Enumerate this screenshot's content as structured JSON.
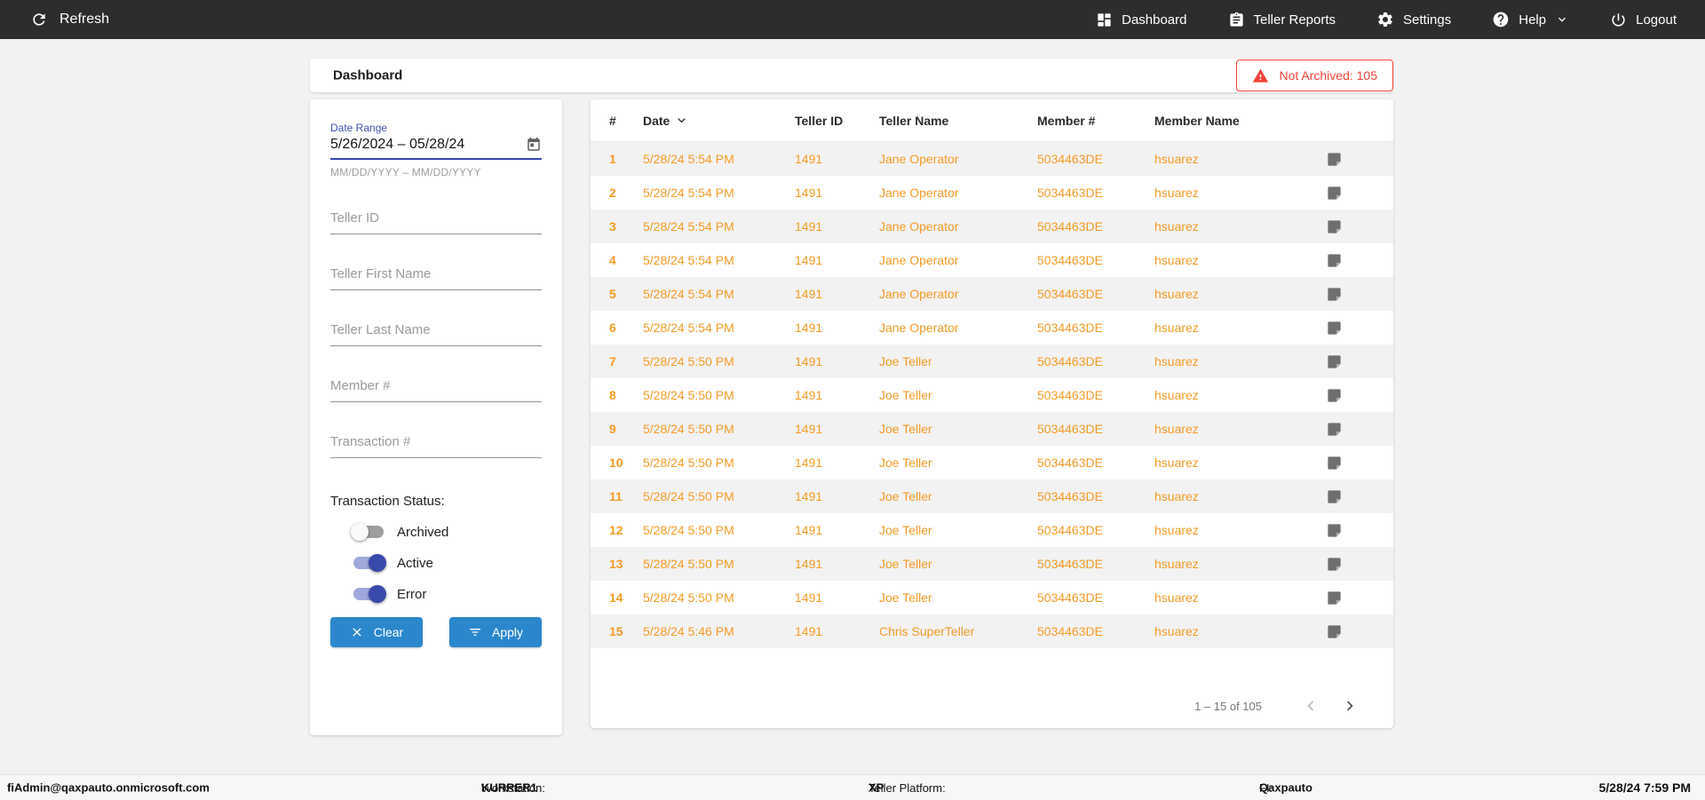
{
  "colors": {
    "nav_bg": "#2d2d2d",
    "accent_blue": "#2b87cc",
    "indigo_accent": "#3f51b5",
    "row_orange": "#f59b25",
    "alert_red": "#f44336"
  },
  "nav": {
    "refresh_label": "Refresh",
    "items": [
      {
        "label": "Dashboard",
        "icon": "dashboard-icon"
      },
      {
        "label": "Teller Reports",
        "icon": "teller-reports-icon"
      },
      {
        "label": "Settings",
        "icon": "settings-icon"
      },
      {
        "label": "Help",
        "icon": "help-icon",
        "has_dropdown": true
      },
      {
        "label": "Logout",
        "icon": "logout-icon"
      }
    ]
  },
  "header": {
    "title": "Dashboard",
    "alert_badge": "Not Archived: 105"
  },
  "filters": {
    "date_range": {
      "label": "Date Range",
      "value": "5/26/2024 – 05/28/24",
      "helper": "MM/DD/YYYY – MM/DD/YYYY"
    },
    "fields": [
      {
        "placeholder": "Teller ID"
      },
      {
        "placeholder": "Teller First Name"
      },
      {
        "placeholder": "Teller Last Name"
      },
      {
        "placeholder": "Member #"
      },
      {
        "placeholder": "Transaction #"
      }
    ],
    "status": {
      "label": "Transaction Status:",
      "toggles": [
        {
          "label": "Archived",
          "on": false
        },
        {
          "label": "Active",
          "on": true
        },
        {
          "label": "Error",
          "on": true
        }
      ]
    },
    "clear_label": "Clear",
    "apply_label": "Apply"
  },
  "table": {
    "columns": [
      "#",
      "Date",
      "Teller ID",
      "Teller Name",
      "Member #",
      "Member Name"
    ],
    "sorted_column": "Date",
    "sort_direction": "descending",
    "rows": [
      {
        "n": "1",
        "date": "5/28/24 5:54 PM",
        "teller_id": "1491",
        "teller_name": "Jane Operator",
        "member_num": "5034463DE",
        "member_name": "hsuarez"
      },
      {
        "n": "2",
        "date": "5/28/24 5:54 PM",
        "teller_id": "1491",
        "teller_name": "Jane Operator",
        "member_num": "5034463DE",
        "member_name": "hsuarez"
      },
      {
        "n": "3",
        "date": "5/28/24 5:54 PM",
        "teller_id": "1491",
        "teller_name": "Jane Operator",
        "member_num": "5034463DE",
        "member_name": "hsuarez"
      },
      {
        "n": "4",
        "date": "5/28/24 5:54 PM",
        "teller_id": "1491",
        "teller_name": "Jane Operator",
        "member_num": "5034463DE",
        "member_name": "hsuarez"
      },
      {
        "n": "5",
        "date": "5/28/24 5:54 PM",
        "teller_id": "1491",
        "teller_name": "Jane Operator",
        "member_num": "5034463DE",
        "member_name": "hsuarez"
      },
      {
        "n": "6",
        "date": "5/28/24 5:54 PM",
        "teller_id": "1491",
        "teller_name": "Jane Operator",
        "member_num": "5034463DE",
        "member_name": "hsuarez"
      },
      {
        "n": "7",
        "date": "5/28/24 5:50 PM",
        "teller_id": "1491",
        "teller_name": "Joe Teller",
        "member_num": "5034463DE",
        "member_name": "hsuarez"
      },
      {
        "n": "8",
        "date": "5/28/24 5:50 PM",
        "teller_id": "1491",
        "teller_name": "Joe Teller",
        "member_num": "5034463DE",
        "member_name": "hsuarez"
      },
      {
        "n": "9",
        "date": "5/28/24 5:50 PM",
        "teller_id": "1491",
        "teller_name": "Joe Teller",
        "member_num": "5034463DE",
        "member_name": "hsuarez"
      },
      {
        "n": "10",
        "date": "5/28/24 5:50 PM",
        "teller_id": "1491",
        "teller_name": "Joe Teller",
        "member_num": "5034463DE",
        "member_name": "hsuarez"
      },
      {
        "n": "11",
        "date": "5/28/24 5:50 PM",
        "teller_id": "1491",
        "teller_name": "Joe Teller",
        "member_num": "5034463DE",
        "member_name": "hsuarez"
      },
      {
        "n": "12",
        "date": "5/28/24 5:50 PM",
        "teller_id": "1491",
        "teller_name": "Joe Teller",
        "member_num": "5034463DE",
        "member_name": "hsuarez"
      },
      {
        "n": "13",
        "date": "5/28/24 5:50 PM",
        "teller_id": "1491",
        "teller_name": "Joe Teller",
        "member_num": "5034463DE",
        "member_name": "hsuarez"
      },
      {
        "n": "14",
        "date": "5/28/24 5:50 PM",
        "teller_id": "1491",
        "teller_name": "Joe Teller",
        "member_num": "5034463DE",
        "member_name": "hsuarez"
      },
      {
        "n": "15",
        "date": "5/28/24 5:46 PM",
        "teller_id": "1491",
        "teller_name": "Chris SuperTeller",
        "member_num": "5034463DE",
        "member_name": "hsuarez"
      }
    ],
    "pagination": {
      "range_label": "1 – 15 of 105"
    }
  },
  "footer": {
    "user": "fiAdmin@qaxpauto.onmicrosoft.com",
    "workstation_label": "Workstation:",
    "workstation": "KURRER1",
    "platform_label": "Teller Platform:",
    "platform": "XP",
    "fi_label": "FI:",
    "fi": "Qaxpauto",
    "datetime": "5/28/24 7:59 PM"
  },
  "icons": {
    "refresh": "circular-arrow",
    "dashboard": "grid-tiles",
    "teller_reports": "clipboard",
    "settings": "gear",
    "help": "question-circle",
    "logout": "power",
    "calendar": "calendar",
    "alert": "warning-triangle",
    "clear": "x",
    "apply": "filter-lines",
    "note": "note-page",
    "sort": "chevron-down",
    "prev": "chevron-left",
    "next": "chevron-right"
  }
}
